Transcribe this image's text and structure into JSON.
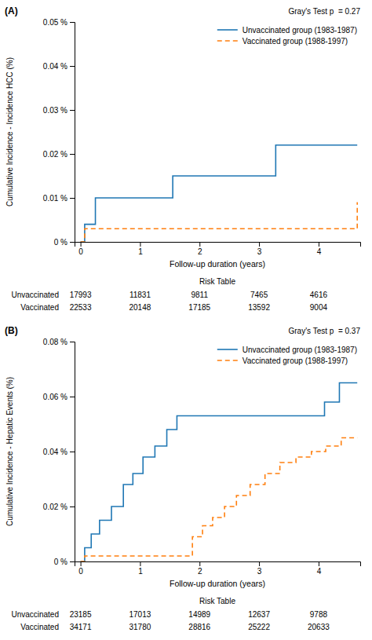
{
  "chart_data": [
    {
      "type": "step",
      "title": "(A)",
      "x_label": "Follow-up duration (years)",
      "y_label": "Cumulative Incidence - Incidence HCC (%)",
      "annotations": [
        "Gray's Test p  = 0.27"
      ],
      "xlim": [
        -0.1,
        4.7
      ],
      "xticks": [
        0,
        1,
        2,
        3,
        4
      ],
      "ylim": [
        0,
        0.05
      ],
      "yticks": [
        {
          "value": 0,
          "label": "0 %"
        },
        {
          "value": 0.01,
          "label": "0.01 %"
        },
        {
          "value": 0.02,
          "label": "0.02 %"
        },
        {
          "value": 0.03,
          "label": "0.03 %"
        },
        {
          "value": 0.04,
          "label": "0.04 %"
        },
        {
          "value": 0.05,
          "label": "0.05 %"
        }
      ],
      "grid": false,
      "legend": "upper right",
      "series": [
        {
          "name": "Unvaccinated group (1983-1987)",
          "line_style": "solid",
          "x": [
            0,
            0.07,
            0.25,
            1.55,
            3.28,
            4.65
          ],
          "values": [
            0,
            0.004,
            0.01,
            0.015,
            0.022,
            0.022
          ]
        },
        {
          "name": "Vaccinated group (1988-1997)",
          "line_style": "dashed",
          "x": [
            0,
            0.07,
            4.28,
            4.65
          ],
          "values": [
            0,
            0.003,
            0.003,
            0.009
          ]
        }
      ],
      "risk_table": {
        "title": "Risk Table",
        "x": [
          0,
          1,
          2,
          3,
          4
        ],
        "rows": [
          {
            "name": "Unvaccinated",
            "values": [
              17993,
              11831,
              9811,
              7465,
              4616
            ]
          },
          {
            "name": "Vaccinated",
            "values": [
              22533,
              20148,
              17185,
              13592,
              9004
            ]
          }
        ]
      }
    },
    {
      "type": "step",
      "title": "(B)",
      "x_label": "Follow-up duration (years)",
      "y_label": "Cumulative Incidence - Hepatic Events (%)",
      "annotations": [
        "Gray's Test p  = 0.37"
      ],
      "xlim": [
        -0.1,
        4.7
      ],
      "xticks": [
        0,
        1,
        2,
        3,
        4
      ],
      "ylim": [
        0,
        0.08
      ],
      "yticks": [
        {
          "value": 0,
          "label": "0 %"
        },
        {
          "value": 0.02,
          "label": "0.02 %"
        },
        {
          "value": 0.04,
          "label": "0.04 %"
        },
        {
          "value": 0.06,
          "label": "0.06 %"
        },
        {
          "value": 0.08,
          "label": "0.08 %"
        }
      ],
      "grid": false,
      "legend": "upper right",
      "series": [
        {
          "name": "Unvaccinated group (1983-1987)",
          "line_style": "solid",
          "x": [
            0,
            0.07,
            0.18,
            0.32,
            0.52,
            0.72,
            0.88,
            1.05,
            1.25,
            1.45,
            1.62,
            4.1,
            4.35,
            4.65
          ],
          "values": [
            0,
            0.005,
            0.01,
            0.015,
            0.02,
            0.028,
            0.032,
            0.038,
            0.042,
            0.048,
            0.053,
            0.058,
            0.065,
            0.065
          ]
        },
        {
          "name": "Vaccinated group (1988-1997)",
          "line_style": "dashed",
          "x": [
            0,
            0.07,
            1.72,
            1.88,
            2.05,
            2.22,
            2.42,
            2.62,
            2.85,
            3.1,
            3.35,
            3.62,
            3.88,
            4.12,
            4.38,
            4.65
          ],
          "values": [
            0,
            0.002,
            0.002,
            0.009,
            0.013,
            0.016,
            0.02,
            0.024,
            0.028,
            0.032,
            0.036,
            0.038,
            0.04,
            0.042,
            0.045,
            0.045
          ]
        }
      ],
      "risk_table": {
        "title": "Risk Table",
        "x": [
          0,
          1,
          2,
          3,
          4
        ],
        "rows": [
          {
            "name": "Unvaccinated",
            "values": [
              23185,
              17013,
              14989,
              12637,
              9788
            ]
          },
          {
            "name": "Vaccinated",
            "values": [
              34171,
              31780,
              28816,
              25222,
              20633
            ]
          }
        ]
      }
    }
  ]
}
